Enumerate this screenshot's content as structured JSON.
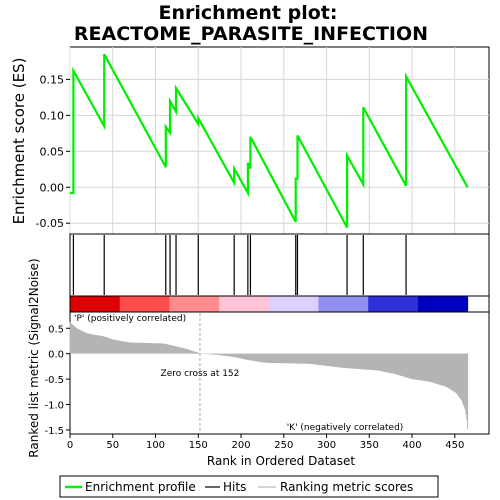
{
  "chart_data": {
    "type": "line",
    "title_line1": "Enrichment plot:",
    "title_line2": "REACTOME_PARASITE_INFECTION",
    "es_panel": {
      "ylabel": "Enrichment score (ES)",
      "ylim": [
        -0.065,
        0.195
      ],
      "yticks": [
        -0.05,
        0.0,
        0.05,
        0.1,
        0.15
      ],
      "ytick_labels": [
        "-0.05",
        "0.00",
        "0.05",
        "0.10",
        "0.15"
      ],
      "line_color": "#00ee00",
      "points": [
        [
          0,
          -0.008
        ],
        [
          4,
          -0.008
        ],
        [
          4,
          0.162
        ],
        [
          40,
          0.085
        ],
        [
          40,
          0.185
        ],
        [
          112,
          0.028
        ],
        [
          112,
          0.084
        ],
        [
          117,
          0.076
        ],
        [
          117,
          0.12
        ],
        [
          124,
          0.105
        ],
        [
          124,
          0.138
        ],
        [
          150,
          0.088
        ],
        [
          150,
          0.096
        ],
        [
          192,
          0.006
        ],
        [
          192,
          0.026
        ],
        [
          208,
          -0.008
        ],
        [
          208,
          0.034
        ],
        [
          211,
          0.026
        ],
        [
          211,
          0.07
        ],
        [
          264,
          -0.048
        ],
        [
          264,
          0.012
        ],
        [
          266,
          0.012
        ],
        [
          266,
          0.072
        ],
        [
          324,
          -0.056
        ],
        [
          324,
          0.044
        ],
        [
          343,
          0.004
        ],
        [
          343,
          0.111
        ],
        [
          393,
          0.002
        ],
        [
          393,
          0.154
        ],
        [
          465,
          0.0
        ]
      ]
    },
    "hits": [
      4,
      40,
      112,
      117,
      124,
      150,
      192,
      208,
      211,
      264,
      266,
      324,
      343,
      393
    ],
    "gradient_colors": [
      "#dd0000",
      "#ff4d4d",
      "#ff8c8c",
      "#ffc4d8",
      "#dcd0ff",
      "#9090f0",
      "#3030d8",
      "#0000c0"
    ],
    "metric_panel": {
      "ylabel": "Ranked list metric (Signal2Noise)",
      "ylim": [
        -1.58,
        0.82
      ],
      "yticks": [
        -1.5,
        -1.0,
        -0.5,
        0.0,
        0.5
      ],
      "ytick_labels": [
        "-1.5",
        "-1.0",
        "-0.5",
        "0.0",
        "0.5"
      ],
      "values_sampled": [
        [
          0,
          0.62
        ],
        [
          8,
          0.5
        ],
        [
          20,
          0.4
        ],
        [
          40,
          0.34
        ],
        [
          50,
          0.28
        ],
        [
          70,
          0.22
        ],
        [
          110,
          0.2
        ],
        [
          120,
          0.16
        ],
        [
          135,
          0.1
        ],
        [
          150,
          0.02
        ],
        [
          152,
          0.0
        ],
        [
          170,
          -0.02
        ],
        [
          190,
          -0.06
        ],
        [
          210,
          -0.13
        ],
        [
          230,
          -0.18
        ],
        [
          280,
          -0.2
        ],
        [
          320,
          -0.28
        ],
        [
          360,
          -0.33
        ],
        [
          380,
          -0.4
        ],
        [
          400,
          -0.5
        ],
        [
          420,
          -0.55
        ],
        [
          440,
          -0.65
        ],
        [
          452,
          -0.78
        ],
        [
          458,
          -0.92
        ],
        [
          462,
          -1.1
        ],
        [
          464,
          -1.3
        ],
        [
          465,
          -1.48
        ]
      ],
      "zero_cross_label": "Zero cross at 152",
      "zero_cross_rank": 152,
      "pos_label": "'P' (positively correlated)",
      "neg_label": "'K' (negatively correlated)",
      "pos_color": "#cc0000",
      "neg_color": "#0000cc"
    },
    "xaxis": {
      "label": "Rank in Ordered Dataset",
      "xlim": [
        0,
        490
      ],
      "max_rank": 465,
      "xticks": [
        0,
        50,
        100,
        150,
        200,
        250,
        300,
        350,
        400,
        450
      ],
      "xtick_labels": [
        "0",
        "50",
        "100",
        "150",
        "200",
        "250",
        "300",
        "350",
        "400",
        "450"
      ]
    },
    "legend": {
      "items": [
        {
          "label": "Enrichment profile",
          "color": "#00ee00"
        },
        {
          "label": "Hits",
          "color": "#000000"
        },
        {
          "label": "Ranking metric scores",
          "color": "#bbbbbb"
        }
      ]
    }
  }
}
